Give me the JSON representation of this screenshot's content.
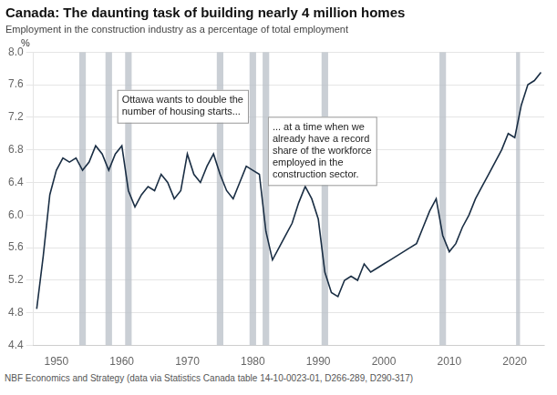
{
  "chart_data": {
    "type": "line",
    "title": "Canada: The daunting task of building nearly 4 million homes",
    "subtitle": "Employment in the construction industry as a percentage of total employment",
    "footnote": "NBF Economics and Strategy (data via Statistics Canada table 14-10-0023-01, D266-289, D290-317)",
    "ylabel": "%",
    "color": "#1a2e44",
    "grid": "y",
    "xlim": [
      1946.5,
      2024.5
    ],
    "xticks": [
      1950,
      1960,
      1970,
      1980,
      1990,
      2000,
      2010,
      2020
    ],
    "ylim": [
      4.4,
      8.0
    ],
    "yticks": [
      4.4,
      4.8,
      5.2,
      5.6,
      {
        "value": 6.0,
        "label": "6.0"
      },
      6.4,
      6.8,
      7.2,
      7.6,
      {
        "value": 8.0,
        "label": "8.0"
      }
    ],
    "annotations": [
      {
        "text": "Ottawa wants to double the\nnumber of housing starts...",
        "x": 1960,
        "y": 7.48
      },
      {
        "text": "... at a time when we\nalready have a record\nshare of the workforce\nemployed in the\nconstruction sector.",
        "x": 1983,
        "y": 7.15
      }
    ],
    "recession_bands": {
      "color": "#b8bfc7",
      "ranges": [
        [
          1953.5,
          1954.5
        ],
        [
          1957.5,
          1958.5
        ],
        [
          1960.5,
          1961.5
        ],
        [
          1974.5,
          1975.5
        ],
        [
          1979.5,
          1980.5
        ],
        [
          1981.5,
          1982.5
        ],
        [
          1990.5,
          1991.5
        ],
        [
          2008.5,
          2009.5
        ],
        [
          2020.2,
          2020.8
        ]
      ]
    },
    "x": [
      1947,
      1948,
      1949,
      1950,
      1951,
      1952,
      1953,
      1954,
      1955,
      1956,
      1957,
      1958,
      1959,
      1960,
      1961,
      1962,
      1963,
      1964,
      1965,
      1966,
      1967,
      1968,
      1969,
      1970,
      1971,
      1972,
      1973,
      1974,
      1975,
      1976,
      1977,
      1978,
      1979,
      1980,
      1981,
      1982,
      1983,
      1984,
      1985,
      1986,
      1987,
      1988,
      1989,
      1990,
      1991,
      1992,
      1993,
      1994,
      1995,
      1996,
      1997,
      1998,
      1999,
      2000,
      2001,
      2002,
      2003,
      2004,
      2005,
      2006,
      2007,
      2008,
      2009,
      2010,
      2011,
      2012,
      2013,
      2014,
      2015,
      2016,
      2017,
      2018,
      2019,
      2020,
      2021,
      2022,
      2023,
      2024
    ],
    "values": [
      4.85,
      5.5,
      6.25,
      6.55,
      6.7,
      6.65,
      6.7,
      6.55,
      6.65,
      6.85,
      6.75,
      6.55,
      6.75,
      6.85,
      6.3,
      6.1,
      6.25,
      6.35,
      6.3,
      6.5,
      6.4,
      6.2,
      6.3,
      6.75,
      6.5,
      6.4,
      6.6,
      6.75,
      6.5,
      6.3,
      6.2,
      6.4,
      6.6,
      6.55,
      6.5,
      5.8,
      5.45,
      5.6,
      5.75,
      5.9,
      6.15,
      6.35,
      6.2,
      5.95,
      5.3,
      5.05,
      5.0,
      5.2,
      5.25,
      5.2,
      5.4,
      5.3,
      5.35,
      5.4,
      5.45,
      5.5,
      5.55,
      5.6,
      5.65,
      5.85,
      6.05,
      6.2,
      5.75,
      5.55,
      5.65,
      5.85,
      6.0,
      6.2,
      6.35,
      6.5,
      6.65,
      6.8,
      7.0,
      6.95,
      7.35,
      7.6,
      7.65,
      7.75
    ]
  }
}
